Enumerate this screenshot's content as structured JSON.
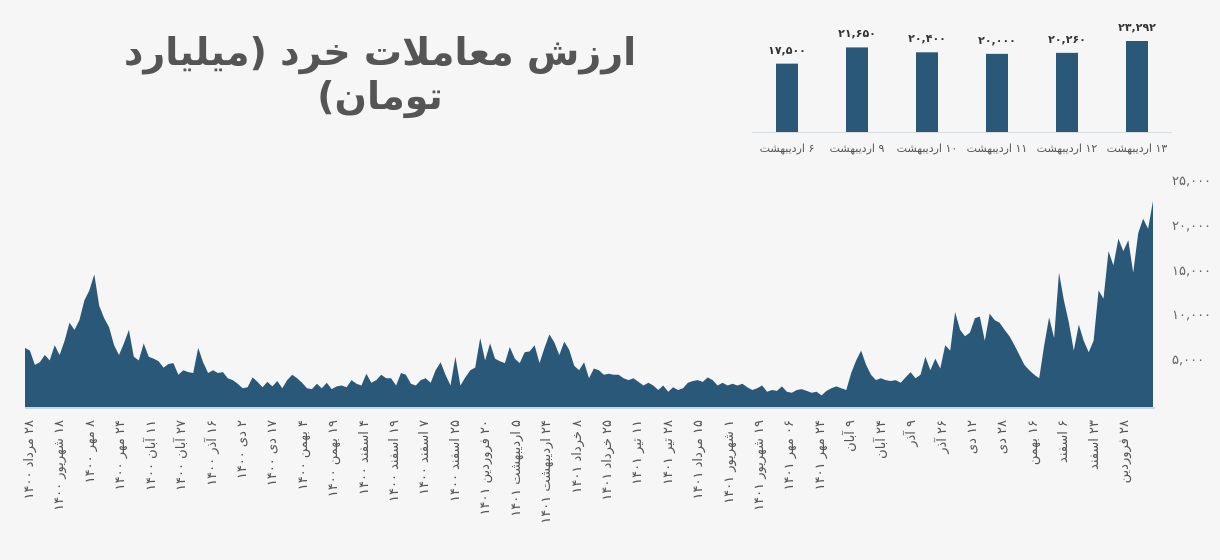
{
  "title": "ارزش معاملات خرد (میلیارد تومان)",
  "colors": {
    "series": "#2a5878",
    "axis": "#d8dde2",
    "text": "#555555"
  },
  "chart_data": [
    {
      "type": "bar",
      "categories": [
        "۶ اردیبهشت",
        "۹ اردیبهشت",
        "۱۰ اردیبهشت",
        "۱۱ اردیبهشت",
        "۱۲ اردیبهشت",
        "۱۳ اردیبهشت"
      ],
      "values": [
        17500,
        21650,
        20400,
        20000,
        20260,
        23292
      ],
      "data_labels": [
        "۱۷,۵۰۰",
        "۲۱,۶۵۰",
        "۲۰,۴۰۰",
        "۲۰,۰۰۰",
        "۲۰,۲۶۰",
        "۲۳,۲۹۲"
      ],
      "ylim": [
        0,
        23292
      ]
    },
    {
      "type": "area",
      "ylim": [
        0,
        25000
      ],
      "yticks": [
        5000,
        10000,
        15000,
        20000,
        25000
      ],
      "ytick_labels": [
        "۵,۰۰۰",
        "۱۰,۰۰۰",
        "۱۵,۰۰۰",
        "۲۰,۰۰۰",
        "۲۵,۰۰۰"
      ],
      "grid": false,
      "xtick_labels": [
        "۲۸ مرداد ۱۴۰۰",
        "۱۸ شهریور ۱۴۰۰",
        "۸ مهر ۱۴۰۰",
        "۲۴ مهر ۱۴۰۰",
        "۱۱ آبان ۱۴۰۰",
        "۲۷ آبان ۱۴۰۰",
        "۱۶ آذر ۱۴۰۰",
        "۲ دی ۱۴۰۰",
        "۱۷ دی ۱۴۰۰",
        "۴ بهمن ۱۴۰۰",
        "۱۹ بهمن ۱۴۰۰",
        "۴ اسفند ۱۴۰۰",
        "۱۹ اسفند ۱۴۰۰",
        "۷ اسفند ۱۴۰۰",
        "۲۵ اسفند ۱۴۰۰",
        "۲۰ فروردین ۱۴۰۱",
        "۵ اردیبهشت ۱۴۰۱",
        "۲۴ اردیبهشت ۱۴۰۱",
        "۸ خرداد ۱۴۰۱",
        "۲۵ خرداد ۱۴۰۱",
        "۱۱ تیر ۱۴۰۱",
        "۲۸ تیر ۱۴۰۱",
        "۱۵ مرداد ۱۴۰۱",
        "۱ شهریور ۱۴۰۱",
        "۱۹ شهریور ۱۴۰۱",
        "۰۶ مهر ۱۴۰۱",
        "۲۴ مهر ۱۴۰۱",
        "۹ آبان",
        "۲۴ آبان",
        "۹ آذر",
        "۲۶ آذر",
        "۱۲ دی",
        "۲۸ دی",
        "۱۶ بهمن",
        "۶ اسفند",
        "۲۳ اسفند",
        "۲۸ فروردین"
      ],
      "values": [
        6600,
        6300,
        4700,
        5000,
        5800,
        5200,
        6900,
        5800,
        7400,
        9400,
        8600,
        9700,
        11900,
        13000,
        14800,
        11300,
        9900,
        8900,
        6900,
        5800,
        7100,
        8600,
        5600,
        5200,
        7100,
        5600,
        5400,
        5100,
        4400,
        4800,
        4900,
        3600,
        4100,
        3900,
        3800,
        6600,
        5000,
        3800,
        4100,
        3800,
        3900,
        3200,
        3000,
        2600,
        2100,
        2200,
        3300,
        2800,
        2200,
        2800,
        2300,
        2900,
        2100,
        3000,
        3600,
        3200,
        2700,
        2100,
        2000,
        2600,
        2100,
        2700,
        2000,
        2300,
        2400,
        2200,
        3000,
        2600,
        2400,
        3700,
        2700,
        3000,
        3600,
        3200,
        3200,
        2400,
        3800,
        3600,
        2600,
        2400,
        3000,
        3200,
        2700,
        4100,
        5000,
        3600,
        2400,
        5600,
        2400,
        3300,
        4100,
        4400,
        7700,
        5200,
        7100,
        5400,
        5100,
        4900,
        6700,
        5400,
        4900,
        6100,
        6200,
        6900,
        4900,
        6600,
        8100,
        7200,
        5800,
        7300,
        6400,
        4600,
        4100,
        5000,
        3200,
        4300,
        4100,
        3600,
        3700,
        3600,
        3600,
        3200,
        3000,
        3200,
        2800,
        2400,
        2700,
        2400,
        1900,
        2400,
        1700,
        2200,
        1900,
        2100,
        2700,
        2900,
        3000,
        2800,
        3300,
        3000,
        2400,
        2700,
        2400,
        2600,
        2400,
        2600,
        2200,
        1900,
        2100,
        2400,
        1700,
        1900,
        1800,
        2300,
        1700,
        1600,
        1900,
        2000,
        1800,
        1600,
        1700,
        1300,
        1800,
        2100,
        2300,
        2100,
        1900,
        3800,
        5200,
        6300,
        4700,
        3600,
        3000,
        3200,
        3000,
        2900,
        3000,
        2700,
        3300,
        3900,
        3200,
        3600,
        5600,
        4100,
        5400,
        4300,
        6900,
        6300,
        10600,
        8600,
        7900,
        8300,
        9900,
        10100,
        7400,
        10400,
        9700,
        9400,
        8600,
        7900,
        6900,
        5800,
        4700,
        4100,
        3600,
        3200,
        6900,
        10000,
        7700,
        15000,
        11900,
        9400,
        6300,
        9200,
        7400,
        6100,
        7400,
        13000,
        12100,
        17400,
        15800,
        18800,
        17400,
        18600,
        15000,
        19400,
        21000,
        19900,
        23000
      ]
    }
  ]
}
